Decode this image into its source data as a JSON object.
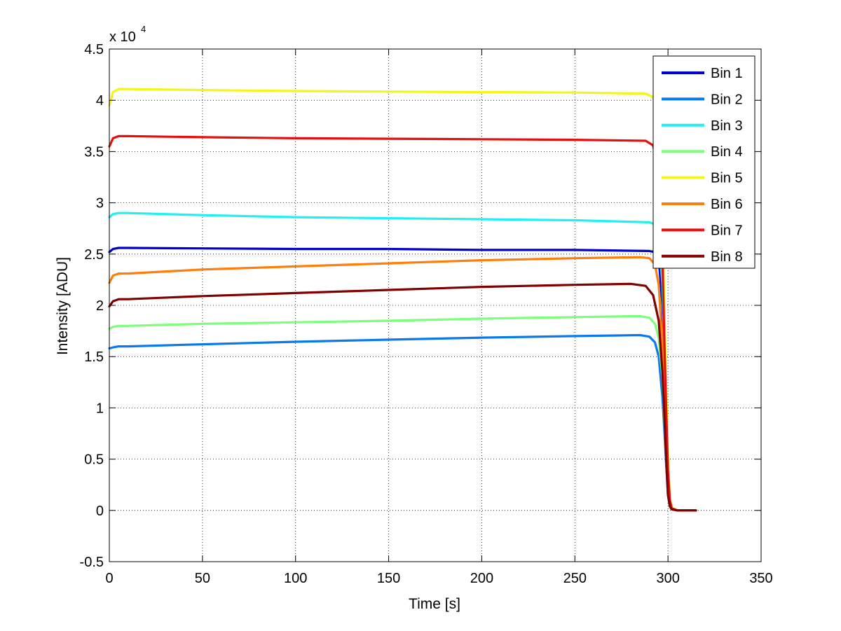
{
  "chart_data": {
    "type": "line",
    "title": "",
    "xlabel": "Time [s]",
    "ylabel": "Intensity [ADU]",
    "y_multiplier_label": "x 10",
    "y_multiplier_exponent": "4",
    "xlim": [
      0,
      350
    ],
    "ylim": [
      -0.5,
      4.5
    ],
    "xticks": [
      0,
      50,
      100,
      150,
      200,
      250,
      300,
      350
    ],
    "xtick_labels": [
      "0",
      "50",
      "100",
      "150",
      "200",
      "250",
      "300",
      "350"
    ],
    "yticks": [
      -0.5,
      0,
      0.5,
      1,
      1.5,
      2,
      2.5,
      3,
      3.5,
      4,
      4.5
    ],
    "ytick_labels": [
      "-0.5",
      "0",
      "0.5",
      "1",
      "1.5",
      "2",
      "2.5",
      "3",
      "3.5",
      "4",
      "4.5"
    ],
    "grid": true,
    "legend_position": "top-right",
    "series": [
      {
        "name": "Bin 1",
        "color": "#0000c8",
        "x": [
          0,
          2,
          5,
          10,
          50,
          100,
          150,
          200,
          250,
          290,
          293,
          295,
          297,
          298,
          299,
          300,
          301,
          302,
          305,
          310,
          315
        ],
        "y": [
          2.52,
          2.55,
          2.56,
          2.56,
          2.555,
          2.55,
          2.55,
          2.54,
          2.54,
          2.53,
          2.52,
          2.46,
          2.0,
          1.5,
          0.9,
          0.35,
          0.08,
          0.02,
          0.0,
          0.0,
          0.0
        ]
      },
      {
        "name": "Bin 2",
        "color": "#0a7aeb",
        "x": [
          0,
          2,
          5,
          10,
          50,
          100,
          150,
          200,
          250,
          285,
          290,
          293,
          295,
          297,
          298,
          299,
          300,
          301,
          302,
          305,
          310,
          315
        ],
        "y": [
          1.58,
          1.59,
          1.6,
          1.6,
          1.62,
          1.645,
          1.665,
          1.685,
          1.7,
          1.71,
          1.695,
          1.64,
          1.5,
          1.1,
          0.8,
          0.45,
          0.15,
          0.04,
          0.01,
          0.0,
          0.0,
          0.0
        ]
      },
      {
        "name": "Bin 3",
        "color": "#21f0f0",
        "x": [
          0,
          2,
          5,
          10,
          50,
          100,
          150,
          200,
          250,
          290,
          293,
          295,
          297,
          298,
          299,
          300,
          301,
          302,
          305,
          310,
          315
        ],
        "y": [
          2.86,
          2.89,
          2.9,
          2.9,
          2.88,
          2.86,
          2.85,
          2.84,
          2.83,
          2.81,
          2.79,
          2.7,
          2.2,
          1.6,
          0.9,
          0.35,
          0.08,
          0.02,
          0.0,
          0.0,
          0.0
        ]
      },
      {
        "name": "Bin 4",
        "color": "#7dff7d",
        "x": [
          0,
          2,
          5,
          10,
          50,
          100,
          150,
          200,
          250,
          285,
          290,
          293,
          295,
          297,
          298,
          299,
          300,
          301,
          302,
          305,
          310,
          315
        ],
        "y": [
          1.77,
          1.79,
          1.8,
          1.8,
          1.82,
          1.835,
          1.85,
          1.87,
          1.885,
          1.895,
          1.88,
          1.82,
          1.68,
          1.3,
          0.9,
          0.5,
          0.18,
          0.05,
          0.01,
          0.0,
          0.0,
          0.0
        ]
      },
      {
        "name": "Bin 5",
        "color": "#f5f51e",
        "x": [
          0,
          2,
          5,
          10,
          50,
          100,
          150,
          200,
          250,
          288,
          292,
          295,
          297,
          298,
          299,
          300,
          301,
          302,
          305,
          310,
          315
        ],
        "y": [
          3.95,
          4.08,
          4.11,
          4.11,
          4.1,
          4.09,
          4.085,
          4.08,
          4.075,
          4.065,
          4.03,
          3.8,
          3.0,
          2.0,
          1.2,
          0.5,
          0.12,
          0.03,
          0.0,
          0.0,
          0.0
        ]
      },
      {
        "name": "Bin 6",
        "color": "#ff7d0a",
        "x": [
          0,
          2,
          5,
          10,
          50,
          100,
          150,
          200,
          250,
          285,
          290,
          293,
          295,
          297,
          298,
          299,
          300,
          301,
          302,
          305,
          310,
          315
        ],
        "y": [
          2.22,
          2.29,
          2.31,
          2.31,
          2.35,
          2.38,
          2.41,
          2.44,
          2.46,
          2.47,
          2.46,
          2.4,
          2.2,
          1.6,
          1.1,
          0.6,
          0.2,
          0.05,
          0.01,
          0.0,
          0.0,
          0.0
        ]
      },
      {
        "name": "Bin 7",
        "color": "#e60f0f",
        "x": [
          0,
          2,
          5,
          10,
          50,
          100,
          150,
          200,
          250,
          288,
          292,
          295,
          297,
          298,
          299,
          300,
          301,
          302,
          305,
          310,
          315
        ],
        "y": [
          3.55,
          3.63,
          3.65,
          3.65,
          3.64,
          3.63,
          3.625,
          3.62,
          3.615,
          3.605,
          3.56,
          3.3,
          2.5,
          1.7,
          1.0,
          0.4,
          0.1,
          0.02,
          0.0,
          0.0,
          0.0
        ]
      },
      {
        "name": "Bin 8",
        "color": "#800000",
        "x": [
          0,
          2,
          5,
          10,
          50,
          100,
          150,
          200,
          250,
          280,
          288,
          292,
          295,
          297,
          298,
          299,
          300,
          301,
          302,
          305,
          310,
          315
        ],
        "y": [
          1.99,
          2.04,
          2.06,
          2.06,
          2.09,
          2.12,
          2.15,
          2.18,
          2.2,
          2.21,
          2.19,
          2.1,
          1.85,
          1.35,
          0.95,
          0.5,
          0.15,
          0.04,
          0.01,
          0.0,
          0.0,
          0.0
        ]
      }
    ]
  }
}
